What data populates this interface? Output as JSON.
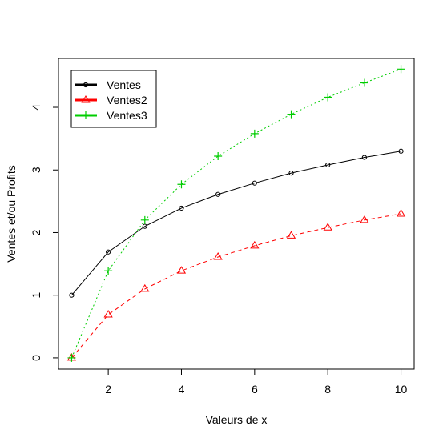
{
  "chart_data": {
    "type": "line",
    "title": "",
    "xlabel": "Valeurs de x",
    "ylabel": "Ventes et/ou Profits",
    "xlim": [
      0.64,
      10.36
    ],
    "ylim": [
      -0.18,
      4.78
    ],
    "x_ticks": [
      2,
      4,
      6,
      8,
      10
    ],
    "y_ticks": [
      0,
      1,
      2,
      3,
      4
    ],
    "grid": false,
    "legend_position": "top-left",
    "x": [
      1,
      2,
      3,
      4,
      5,
      6,
      7,
      8,
      9,
      10
    ],
    "series": [
      {
        "name": "Ventes",
        "values": [
          1.0,
          1.69,
          2.1,
          2.39,
          2.61,
          2.79,
          2.95,
          3.08,
          3.2,
          3.3
        ],
        "color": "#000000",
        "line_style": "solid",
        "marker": "circle"
      },
      {
        "name": "Ventes2",
        "values": [
          0.0,
          0.69,
          1.1,
          1.39,
          1.61,
          1.79,
          1.95,
          2.08,
          2.2,
          2.3
        ],
        "color": "#ff0000",
        "line_style": "dashed",
        "marker": "triangle"
      },
      {
        "name": "Ventes3",
        "values": [
          0.0,
          1.39,
          2.2,
          2.77,
          3.22,
          3.58,
          3.89,
          4.16,
          4.39,
          4.61
        ],
        "color": "#00cd00",
        "line_style": "dotted",
        "marker": "plus"
      }
    ]
  }
}
